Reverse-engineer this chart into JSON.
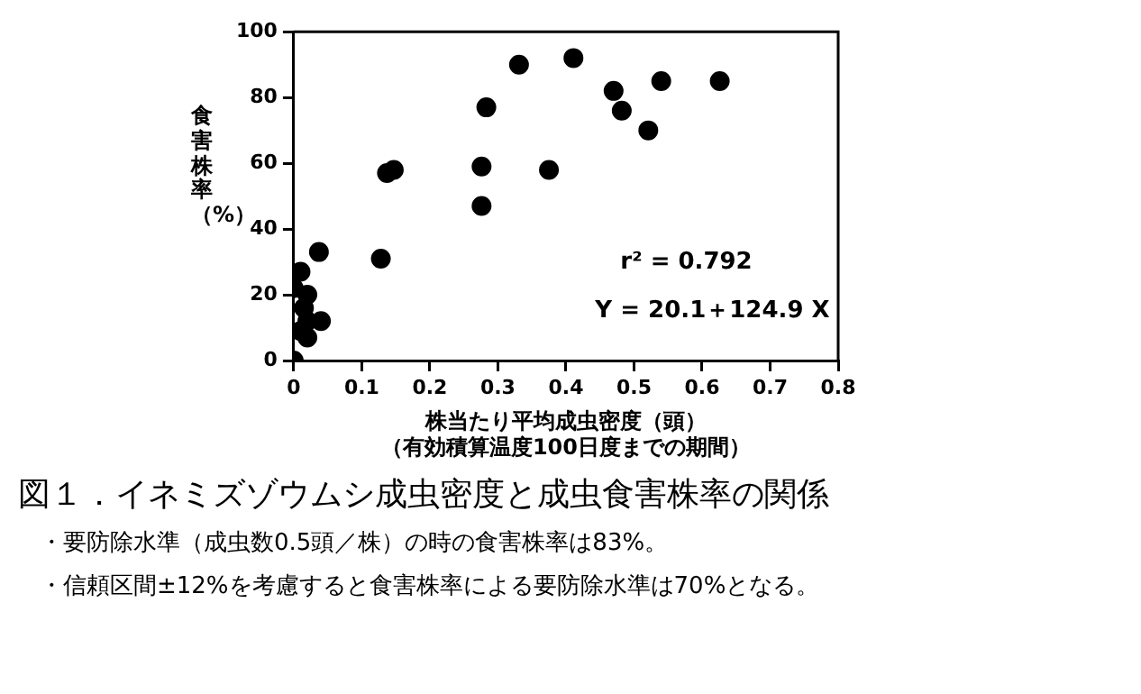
{
  "chart_data": {
    "type": "scatter",
    "title": "図１．イネミズゾウムシ成虫密度と成虫食害株率の関係",
    "xlabel": "株当たり平均成虫密度（頭）",
    "ylabel": "食害株率（%）",
    "annotations": [
      "（有効積算温度100日度までの期間）",
      "r² = 0.792",
      "Y = 20.1＋124.9 X",
      "・要防除水準（成虫数0.5頭／株）の時の食害株率は83%。",
      "・信頼区間±12%を考慮すると食害株率による要防除水準は70%となる。"
    ],
    "series": [
      {
        "color": "#000000",
        "x": [
          0,
          0.01,
          0,
          0.02,
          0.015,
          0.04,
          0.02,
          0.01,
          0.02,
          0.037,
          0.128,
          0.137,
          0.147,
          0.276,
          0.276,
          0.283,
          0.331,
          0.375,
          0.411,
          0.47,
          0.482,
          0.521,
          0.54,
          0.626
        ],
        "values": [
          0,
          27,
          22,
          20,
          16,
          12,
          12,
          9,
          7,
          33,
          31,
          57,
          58,
          59,
          47,
          77,
          90,
          58,
          92,
          82,
          76,
          70,
          85,
          85
        ]
      }
    ],
    "xlim": [
      0,
      0.8
    ],
    "xticks": [
      0,
      0.1,
      0.2,
      0.3,
      0.4,
      0.5,
      0.6,
      0.7,
      0.8
    ],
    "ylim": [
      0,
      100
    ],
    "yticks": [
      0,
      20,
      40,
      60,
      80,
      100
    ],
    "marker": "circle",
    "grid": false,
    "legend": false
  }
}
